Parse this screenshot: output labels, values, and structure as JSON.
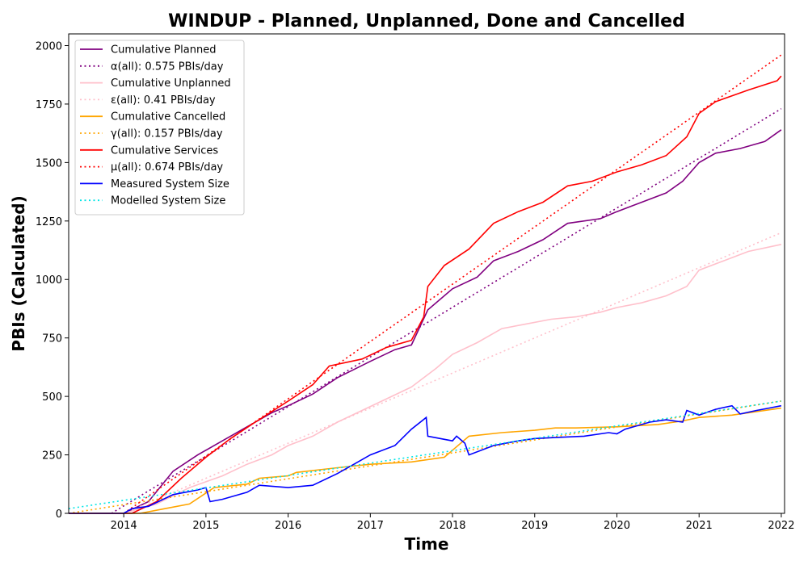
{
  "chart_data": {
    "type": "line",
    "title": "WINDUP - Planned, Unplanned, Done  and Cancelled",
    "xlabel": "Time",
    "ylabel": "PBIs (Calculated)",
    "xlim": [
      2013.33,
      2022.04
    ],
    "ylim": [
      0,
      2050
    ],
    "x_ticks": [
      "2014",
      "2015",
      "2016",
      "2017",
      "2018",
      "2019",
      "2020",
      "2021",
      "2022"
    ],
    "y_ticks": [
      "0",
      "250",
      "500",
      "750",
      "1000",
      "1250",
      "1500",
      "1750",
      "2000"
    ],
    "grid": false,
    "legend_position": "upper-left",
    "series": [
      {
        "name": "Cumulative Planned",
        "color": "#800080",
        "style": "solid",
        "x": [
          2013.33,
          2014.0,
          2014.3,
          2014.6,
          2014.9,
          2015.2,
          2015.5,
          2015.8,
          2016.0,
          2016.3,
          2016.6,
          2017.0,
          2017.3,
          2017.5,
          2017.7,
          2018.0,
          2018.3,
          2018.5,
          2018.8,
          2019.1,
          2019.4,
          2019.8,
          2020.0,
          2020.3,
          2020.6,
          2020.8,
          2021.0,
          2021.2,
          2021.5,
          2021.8,
          2022.0
        ],
        "y": [
          0,
          0,
          50,
          180,
          250,
          310,
          370,
          430,
          460,
          510,
          580,
          650,
          700,
          720,
          870,
          960,
          1010,
          1080,
          1120,
          1170,
          1240,
          1260,
          1290,
          1330,
          1370,
          1420,
          1500,
          1540,
          1560,
          1590,
          1640
        ]
      },
      {
        "name": "α(all): 0.575 PBIs/day",
        "color": "#800080",
        "style": "dotted",
        "x": [
          2013.85,
          2022.0
        ],
        "y": [
          0,
          1730
        ]
      },
      {
        "name": "Cumulative Unplanned",
        "color": "#ffc0cb",
        "style": "solid",
        "x": [
          2013.33,
          2014.0,
          2014.4,
          2014.8,
          2015.2,
          2015.5,
          2015.8,
          2016.0,
          2016.3,
          2016.6,
          2016.9,
          2017.2,
          2017.5,
          2017.8,
          2018.0,
          2018.3,
          2018.6,
          2018.9,
          2019.2,
          2019.5,
          2019.8,
          2020.0,
          2020.3,
          2020.6,
          2020.85,
          2021.0,
          2021.3,
          2021.6,
          2022.0
        ],
        "y": [
          0,
          0,
          40,
          110,
          160,
          210,
          250,
          290,
          330,
          390,
          440,
          490,
          540,
          620,
          680,
          730,
          790,
          810,
          830,
          840,
          860,
          880,
          900,
          930,
          970,
          1040,
          1080,
          1120,
          1150
        ]
      },
      {
        "name": "ε(all): 0.41 PBIs/day",
        "color": "#ffc0cb",
        "style": "dotted",
        "x": [
          2014.0,
          2022.0
        ],
        "y": [
          0,
          1200
        ]
      },
      {
        "name": "Cumulative Cancelled",
        "color": "#ffa500",
        "style": "solid",
        "x": [
          2013.33,
          2014.2,
          2014.5,
          2014.8,
          2015.1,
          2015.5,
          2015.65,
          2016.0,
          2016.1,
          2016.6,
          2017.0,
          2017.5,
          2017.9,
          2018.0,
          2018.2,
          2018.6,
          2019.0,
          2019.25,
          2019.5,
          2020.0,
          2020.5,
          2020.8,
          2021.0,
          2021.4,
          2022.0
        ],
        "y": [
          0,
          0,
          20,
          40,
          110,
          125,
          150,
          160,
          175,
          195,
          210,
          220,
          240,
          270,
          330,
          345,
          355,
          365,
          365,
          370,
          380,
          395,
          410,
          420,
          450
        ]
      },
      {
        "name": "γ(all): 0.157 PBIs/day",
        "color": "#ffa500",
        "style": "dotted",
        "x": [
          2013.33,
          2022.0
        ],
        "y": [
          0,
          480
        ]
      },
      {
        "name": "Cumulative Services",
        "color": "#ff0000",
        "style": "solid",
        "x": [
          2013.33,
          2014.1,
          2014.4,
          2014.7,
          2015.0,
          2015.3,
          2015.6,
          2016.0,
          2016.3,
          2016.5,
          2016.9,
          2017.2,
          2017.5,
          2017.65,
          2017.7,
          2017.9,
          2018.2,
          2018.5,
          2018.8,
          2019.1,
          2019.4,
          2019.7,
          2020.0,
          2020.3,
          2020.6,
          2020.85,
          2021.0,
          2021.2,
          2021.6,
          2021.95,
          2022.0
        ],
        "y": [
          0,
          0,
          50,
          150,
          240,
          320,
          390,
          480,
          550,
          630,
          660,
          710,
          740,
          840,
          970,
          1060,
          1130,
          1240,
          1290,
          1330,
          1400,
          1420,
          1460,
          1490,
          1530,
          1610,
          1710,
          1760,
          1810,
          1850,
          1870
        ]
      },
      {
        "name": "μ(all): 0.674 PBIs/day",
        "color": "#ff0000",
        "style": "dotted",
        "x": [
          2014.0,
          2022.0
        ],
        "y": [
          0,
          1960
        ]
      },
      {
        "name": "Measured System Size",
        "color": "#0000ff",
        "style": "solid",
        "x": [
          2013.33,
          2014.0,
          2014.1,
          2014.3,
          2014.6,
          2014.9,
          2015.0,
          2015.05,
          2015.2,
          2015.5,
          2015.65,
          2016.0,
          2016.3,
          2016.6,
          2016.8,
          2017.0,
          2017.3,
          2017.5,
          2017.68,
          2017.7,
          2018.0,
          2018.05,
          2018.15,
          2018.2,
          2018.5,
          2018.8,
          2019.0,
          2019.3,
          2019.6,
          2019.9,
          2020.0,
          2020.1,
          2020.4,
          2020.6,
          2020.8,
          2020.85,
          2021.0,
          2021.2,
          2021.4,
          2021.5,
          2021.7,
          2021.85,
          2022.0
        ],
        "y": [
          0,
          0,
          20,
          30,
          80,
          100,
          110,
          50,
          60,
          90,
          120,
          110,
          120,
          170,
          210,
          250,
          290,
          360,
          410,
          330,
          310,
          330,
          300,
          250,
          290,
          310,
          320,
          325,
          330,
          345,
          340,
          360,
          390,
          400,
          390,
          440,
          420,
          445,
          460,
          425,
          440,
          450,
          460
        ]
      },
      {
        "name": "Modelled System Size",
        "color": "#00e5e5",
        "style": "dotted",
        "x": [
          2013.33,
          2022.0
        ],
        "y": [
          20,
          480
        ]
      }
    ]
  }
}
